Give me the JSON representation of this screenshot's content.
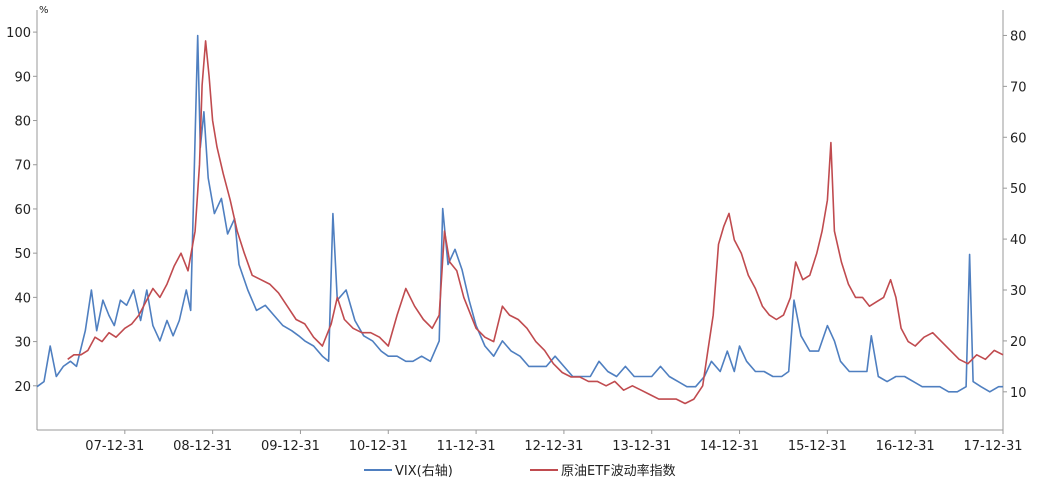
{
  "chart_data": {
    "type": "line",
    "left_unit": "%",
    "left_axis": {
      "ylim": [
        10,
        105
      ],
      "ticks": [
        20,
        30,
        40,
        50,
        60,
        70,
        80,
        90,
        100
      ]
    },
    "right_axis": {
      "ylim": [
        2.5,
        85
      ],
      "ticks": [
        10,
        20,
        30,
        40,
        50,
        60,
        70,
        80
      ]
    },
    "x_range": [
      2007.0,
      2018.0
    ],
    "x_ticks": [
      {
        "label": "07-12-31",
        "x": 2008.0
      },
      {
        "label": "08-12-31",
        "x": 2009.0
      },
      {
        "label": "09-12-31",
        "x": 2010.0
      },
      {
        "label": "10-12-31",
        "x": 2011.0
      },
      {
        "label": "11-12-31",
        "x": 2012.0
      },
      {
        "label": "12-12-31",
        "x": 2013.0
      },
      {
        "label": "13-12-31",
        "x": 2014.0
      },
      {
        "label": "14-12-31",
        "x": 2015.0
      },
      {
        "label": "15-12-31",
        "x": 2016.0
      },
      {
        "label": "16-12-31",
        "x": 2017.0
      },
      {
        "label": "17-12-31",
        "x": 2018.0
      }
    ],
    "grid": false,
    "legend_position": "bottom",
    "series": [
      {
        "name": "VIX(右轴)",
        "axis": "right",
        "color": "#4f7fc0",
        "points": [
          [
            2007.0,
            11
          ],
          [
            2007.08,
            12
          ],
          [
            2007.15,
            19
          ],
          [
            2007.22,
            13
          ],
          [
            2007.3,
            15
          ],
          [
            2007.38,
            16
          ],
          [
            2007.45,
            15
          ],
          [
            2007.55,
            22
          ],
          [
            2007.62,
            30
          ],
          [
            2007.68,
            22
          ],
          [
            2007.75,
            28
          ],
          [
            2007.82,
            25
          ],
          [
            2007.88,
            23
          ],
          [
            2007.95,
            28
          ],
          [
            2008.02,
            27
          ],
          [
            2008.1,
            30
          ],
          [
            2008.18,
            24
          ],
          [
            2008.25,
            30
          ],
          [
            2008.32,
            23
          ],
          [
            2008.4,
            20
          ],
          [
            2008.48,
            24
          ],
          [
            2008.55,
            21
          ],
          [
            2008.62,
            24
          ],
          [
            2008.7,
            30
          ],
          [
            2008.75,
            26
          ],
          [
            2008.8,
            60
          ],
          [
            2008.83,
            80
          ],
          [
            2008.86,
            58
          ],
          [
            2008.9,
            65
          ],
          [
            2008.95,
            52
          ],
          [
            2009.02,
            45
          ],
          [
            2009.1,
            48
          ],
          [
            2009.17,
            41
          ],
          [
            2009.25,
            44
          ],
          [
            2009.3,
            35
          ],
          [
            2009.4,
            30
          ],
          [
            2009.5,
            26
          ],
          [
            2009.6,
            27
          ],
          [
            2009.7,
            25
          ],
          [
            2009.8,
            23
          ],
          [
            2009.9,
            22
          ],
          [
            2009.98,
            21
          ],
          [
            2010.05,
            20
          ],
          [
            2010.15,
            19
          ],
          [
            2010.25,
            17
          ],
          [
            2010.32,
            16
          ],
          [
            2010.37,
            45
          ],
          [
            2010.42,
            28
          ],
          [
            2010.52,
            30
          ],
          [
            2010.62,
            24
          ],
          [
            2010.72,
            21
          ],
          [
            2010.82,
            20
          ],
          [
            2010.92,
            18
          ],
          [
            2011.0,
            17
          ],
          [
            2011.1,
            17
          ],
          [
            2011.2,
            16
          ],
          [
            2011.28,
            16
          ],
          [
            2011.38,
            17
          ],
          [
            2011.48,
            16
          ],
          [
            2011.58,
            20
          ],
          [
            2011.62,
            46
          ],
          [
            2011.68,
            35
          ],
          [
            2011.76,
            38
          ],
          [
            2011.84,
            34
          ],
          [
            2011.92,
            28
          ],
          [
            2012.0,
            23
          ],
          [
            2012.1,
            19
          ],
          [
            2012.2,
            17
          ],
          [
            2012.3,
            20
          ],
          [
            2012.4,
            18
          ],
          [
            2012.5,
            17
          ],
          [
            2012.6,
            15
          ],
          [
            2012.7,
            15
          ],
          [
            2012.8,
            15
          ],
          [
            2012.9,
            17
          ],
          [
            2013.0,
            15
          ],
          [
            2013.1,
            13
          ],
          [
            2013.2,
            13
          ],
          [
            2013.3,
            13
          ],
          [
            2013.4,
            16
          ],
          [
            2013.5,
            14
          ],
          [
            2013.6,
            13
          ],
          [
            2013.7,
            15
          ],
          [
            2013.8,
            13
          ],
          [
            2013.9,
            13
          ],
          [
            2014.0,
            13
          ],
          [
            2014.1,
            15
          ],
          [
            2014.2,
            13
          ],
          [
            2014.3,
            12
          ],
          [
            2014.4,
            11
          ],
          [
            2014.5,
            11
          ],
          [
            2014.6,
            13
          ],
          [
            2014.68,
            16
          ],
          [
            2014.78,
            14
          ],
          [
            2014.86,
            18
          ],
          [
            2014.94,
            14
          ],
          [
            2015.0,
            19
          ],
          [
            2015.08,
            16
          ],
          [
            2015.18,
            14
          ],
          [
            2015.28,
            14
          ],
          [
            2015.38,
            13
          ],
          [
            2015.48,
            13
          ],
          [
            2015.56,
            14
          ],
          [
            2015.62,
            28
          ],
          [
            2015.7,
            21
          ],
          [
            2015.8,
            18
          ],
          [
            2015.9,
            18
          ],
          [
            2016.0,
            23
          ],
          [
            2016.08,
            20
          ],
          [
            2016.15,
            16
          ],
          [
            2016.25,
            14
          ],
          [
            2016.35,
            14
          ],
          [
            2016.45,
            14
          ],
          [
            2016.5,
            21
          ],
          [
            2016.58,
            13
          ],
          [
            2016.68,
            12
          ],
          [
            2016.78,
            13
          ],
          [
            2016.88,
            13
          ],
          [
            2016.98,
            12
          ],
          [
            2017.08,
            11
          ],
          [
            2017.18,
            11
          ],
          [
            2017.28,
            11
          ],
          [
            2017.38,
            10
          ],
          [
            2017.48,
            10
          ],
          [
            2017.58,
            11
          ],
          [
            2017.62,
            37
          ],
          [
            2017.66,
            12
          ],
          [
            2017.75,
            11
          ],
          [
            2017.85,
            10
          ],
          [
            2017.95,
            11
          ],
          [
            2018.0,
            11
          ]
        ]
      },
      {
        "name": "原油ETF波动率指数",
        "axis": "left",
        "color": "#c04b4f",
        "points": [
          [
            2007.35,
            26
          ],
          [
            2007.42,
            27
          ],
          [
            2007.5,
            27
          ],
          [
            2007.58,
            28
          ],
          [
            2007.66,
            31
          ],
          [
            2007.74,
            30
          ],
          [
            2007.82,
            32
          ],
          [
            2007.9,
            31
          ],
          [
            2008.0,
            33
          ],
          [
            2008.08,
            34
          ],
          [
            2008.16,
            36
          ],
          [
            2008.24,
            39
          ],
          [
            2008.32,
            42
          ],
          [
            2008.4,
            40
          ],
          [
            2008.48,
            43
          ],
          [
            2008.56,
            47
          ],
          [
            2008.64,
            50
          ],
          [
            2008.72,
            46
          ],
          [
            2008.8,
            55
          ],
          [
            2008.85,
            70
          ],
          [
            2008.88,
            88
          ],
          [
            2008.92,
            98
          ],
          [
            2008.96,
            90
          ],
          [
            2009.0,
            80
          ],
          [
            2009.05,
            74
          ],
          [
            2009.12,
            68
          ],
          [
            2009.2,
            62
          ],
          [
            2009.28,
            55
          ],
          [
            2009.36,
            50
          ],
          [
            2009.45,
            45
          ],
          [
            2009.55,
            44
          ],
          [
            2009.65,
            43
          ],
          [
            2009.75,
            41
          ],
          [
            2009.85,
            38
          ],
          [
            2009.95,
            35
          ],
          [
            2010.05,
            34
          ],
          [
            2010.15,
            31
          ],
          [
            2010.25,
            29
          ],
          [
            2010.35,
            34
          ],
          [
            2010.42,
            40
          ],
          [
            2010.5,
            35
          ],
          [
            2010.6,
            33
          ],
          [
            2010.7,
            32
          ],
          [
            2010.8,
            32
          ],
          [
            2010.9,
            31
          ],
          [
            2011.0,
            29
          ],
          [
            2011.1,
            36
          ],
          [
            2011.2,
            42
          ],
          [
            2011.3,
            38
          ],
          [
            2011.4,
            35
          ],
          [
            2011.5,
            33
          ],
          [
            2011.58,
            36
          ],
          [
            2011.64,
            55
          ],
          [
            2011.7,
            48
          ],
          [
            2011.78,
            46
          ],
          [
            2011.86,
            40
          ],
          [
            2011.94,
            36
          ],
          [
            2012.0,
            33
          ],
          [
            2012.1,
            31
          ],
          [
            2012.2,
            30
          ],
          [
            2012.3,
            38
          ],
          [
            2012.38,
            36
          ],
          [
            2012.48,
            35
          ],
          [
            2012.58,
            33
          ],
          [
            2012.68,
            30
          ],
          [
            2012.78,
            28
          ],
          [
            2012.88,
            25
          ],
          [
            2012.98,
            23
          ],
          [
            2013.08,
            22
          ],
          [
            2013.18,
            22
          ],
          [
            2013.28,
            21
          ],
          [
            2013.38,
            21
          ],
          [
            2013.48,
            20
          ],
          [
            2013.58,
            21
          ],
          [
            2013.68,
            19
          ],
          [
            2013.78,
            20
          ],
          [
            2013.88,
            19
          ],
          [
            2013.98,
            18
          ],
          [
            2014.08,
            17
          ],
          [
            2014.18,
            17
          ],
          [
            2014.28,
            17
          ],
          [
            2014.38,
            16
          ],
          [
            2014.48,
            17
          ],
          [
            2014.58,
            20
          ],
          [
            2014.64,
            28
          ],
          [
            2014.7,
            36
          ],
          [
            2014.76,
            52
          ],
          [
            2014.82,
            56
          ],
          [
            2014.88,
            59
          ],
          [
            2014.94,
            53
          ],
          [
            2015.02,
            50
          ],
          [
            2015.1,
            45
          ],
          [
            2015.18,
            42
          ],
          [
            2015.26,
            38
          ],
          [
            2015.34,
            36
          ],
          [
            2015.42,
            35
          ],
          [
            2015.5,
            36
          ],
          [
            2015.58,
            40
          ],
          [
            2015.64,
            48
          ],
          [
            2015.72,
            44
          ],
          [
            2015.8,
            45
          ],
          [
            2015.88,
            50
          ],
          [
            2015.94,
            55
          ],
          [
            2016.0,
            62
          ],
          [
            2016.04,
            75
          ],
          [
            2016.08,
            55
          ],
          [
            2016.16,
            48
          ],
          [
            2016.24,
            43
          ],
          [
            2016.32,
            40
          ],
          [
            2016.4,
            40
          ],
          [
            2016.48,
            38
          ],
          [
            2016.56,
            39
          ],
          [
            2016.64,
            40
          ],
          [
            2016.72,
            44
          ],
          [
            2016.78,
            40
          ],
          [
            2016.84,
            33
          ],
          [
            2016.92,
            30
          ],
          [
            2017.0,
            29
          ],
          [
            2017.1,
            31
          ],
          [
            2017.2,
            32
          ],
          [
            2017.3,
            30
          ],
          [
            2017.4,
            28
          ],
          [
            2017.5,
            26
          ],
          [
            2017.6,
            25
          ],
          [
            2017.7,
            27
          ],
          [
            2017.8,
            26
          ],
          [
            2017.9,
            28
          ],
          [
            2018.0,
            27
          ]
        ]
      }
    ]
  }
}
